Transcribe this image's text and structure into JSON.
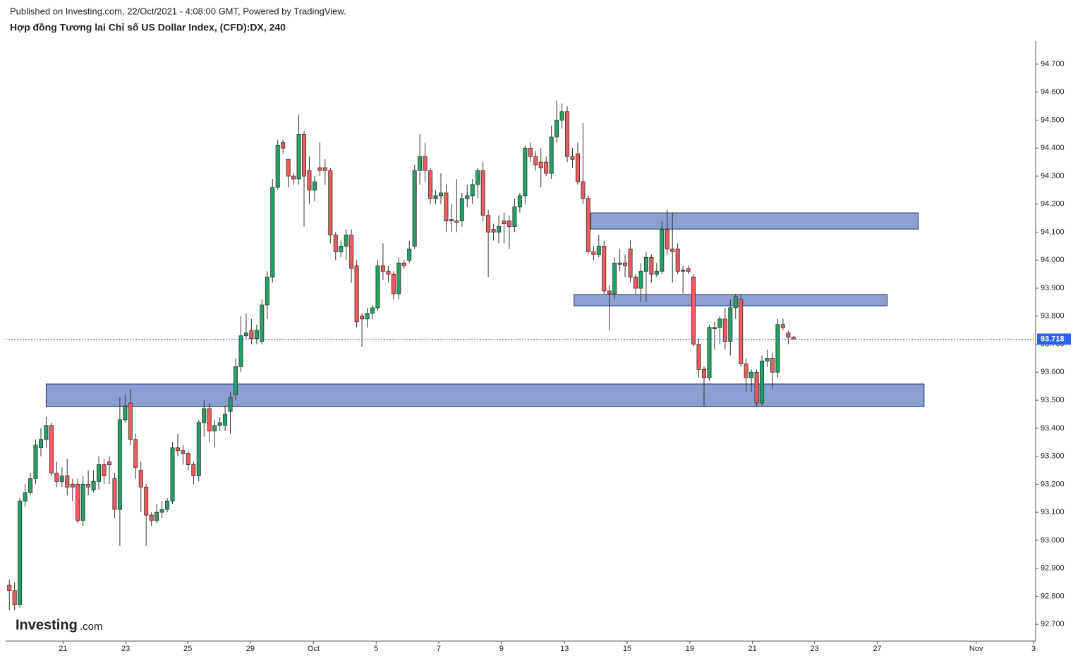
{
  "header": "Published on Investing.com, 22/Oct/2021 - 4:08:00 GMT, Powered by TradingView.",
  "logo": {
    "name": "Investing",
    "suffix": ".com"
  },
  "chart_data": {
    "type": "candlestick",
    "title": "Hợp đồng Tương lai Chỉ số US Dollar Index, (CFD):DX, 240",
    "up_color": "#1fa363",
    "down_color": "#ef5a5a",
    "x": [
      0,
      1,
      2,
      3,
      4,
      5,
      6,
      7,
      8,
      9,
      10,
      11,
      12,
      13,
      14,
      15,
      16,
      17,
      18,
      19,
      20,
      21,
      22,
      23,
      24,
      25,
      26,
      27,
      28,
      29,
      30,
      31,
      32,
      33,
      34,
      35,
      36,
      37,
      38,
      39,
      40,
      41,
      42,
      43,
      44,
      45,
      46,
      47,
      48,
      49,
      50,
      51,
      52,
      53,
      54,
      55,
      56,
      57,
      58,
      59,
      60,
      61,
      62,
      63,
      64,
      65,
      66,
      67,
      68,
      69,
      70,
      71,
      72,
      73,
      74,
      75,
      76,
      77,
      78,
      79,
      80,
      81,
      82,
      83,
      84,
      85,
      86,
      87,
      88,
      89,
      90,
      91,
      92,
      93,
      94,
      95,
      96,
      97,
      98,
      99,
      100,
      101,
      102,
      103,
      104,
      105,
      106,
      107,
      108,
      109,
      110,
      111,
      112,
      113,
      114,
      115,
      116,
      117,
      118,
      119,
      120,
      121,
      122,
      123,
      124,
      125,
      126,
      127,
      128,
      129,
      130,
      131,
      132,
      133,
      134,
      135,
      136,
      137,
      138,
      139,
      140,
      141,
      142,
      143,
      144,
      145,
      146,
      147,
      148,
      149
    ],
    "open": [
      92.84,
      92.82,
      92.77,
      93.14,
      93.17,
      93.22,
      93.33,
      93.36,
      93.41,
      93.24,
      93.21,
      93.23,
      93.2,
      93.2,
      93.07,
      93.2,
      93.18,
      93.21,
      93.27,
      93.28,
      93.22,
      93.11,
      93.43,
      93.49,
      93.36,
      93.25,
      93.19,
      93.09,
      93.07,
      93.1,
      93.11,
      93.14,
      93.33,
      93.32,
      93.31,
      93.27,
      93.23,
      93.42,
      93.47,
      93.39,
      93.41,
      93.41,
      93.46,
      93.52,
      93.62,
      93.73,
      93.75,
      93.72,
      93.71,
      93.84,
      93.94,
      94.26,
      94.42,
      94.36,
      94.3,
      94.29,
      94.45,
      94.32,
      94.25,
      94.33,
      94.33,
      94.32,
      94.09,
      94.03,
      94.05,
      94.09,
      93.98,
      93.8,
      93.79,
      93.81,
      93.83,
      93.98,
      93.96,
      93.95,
      93.88,
      93.99,
      94.0,
      94.05,
      94.32,
      94.37,
      94.32,
      94.22,
      94.23,
      94.24,
      94.145,
      94.14,
      94.14,
      94.22,
      94.23,
      94.27,
      94.32,
      94.16,
      94.11,
      94.1,
      94.14,
      94.14,
      94.12,
      94.19,
      94.23,
      94.4,
      94.37,
      94.35,
      94.35,
      94.31,
      94.44,
      94.5,
      94.53,
      94.37,
      94.38,
      94.28,
      94.22,
      94.03,
      94.02,
      94.05,
      93.89,
      93.88,
      93.985,
      93.99,
      94.04,
      93.94,
      93.9,
      93.96,
      94.01,
      93.95,
      93.96,
      94.11,
      94.04,
      94.04,
      93.96,
      93.97,
      93.94,
      93.7,
      93.61,
      93.58,
      93.76,
      93.76,
      93.79,
      93.71,
      93.83,
      93.86,
      93.63,
      93.58,
      93.6,
      93.49,
      93.64,
      93.65,
      93.6,
      93.77,
      93.74,
      93.725
    ],
    "high": [
      92.86,
      92.85,
      93.15,
      93.2,
      93.24,
      93.36,
      93.4,
      93.44,
      93.42,
      93.28,
      93.26,
      93.29,
      93.22,
      93.22,
      93.23,
      93.25,
      93.25,
      93.3,
      93.29,
      93.3,
      93.24,
      93.51,
      93.52,
      93.54,
      93.38,
      93.28,
      93.2,
      93.1,
      93.13,
      93.14,
      93.15,
      93.35,
      93.38,
      93.34,
      93.32,
      93.28,
      93.43,
      93.5,
      93.49,
      93.43,
      93.44,
      93.48,
      93.53,
      93.65,
      93.8,
      93.81,
      93.79,
      93.77,
      93.86,
      93.96,
      94.29,
      94.43,
      94.43,
      94.36,
      94.31,
      94.52,
      94.46,
      94.37,
      94.3,
      94.42,
      94.36,
      94.33,
      94.1,
      94.07,
      94.11,
      94.11,
      94.0,
      93.81,
      93.83,
      93.84,
      94.0,
      94.06,
      93.98,
      93.96,
      94.01,
      94.0,
      94.07,
      94.34,
      94.45,
      94.42,
      94.33,
      94.25,
      94.31,
      94.27,
      94.2,
      94.29,
      94.24,
      94.27,
      94.29,
      94.33,
      94.35,
      94.18,
      94.13,
      94.16,
      94.17,
      94.16,
      94.22,
      94.24,
      94.41,
      94.42,
      94.39,
      94.4,
      94.37,
      94.48,
      94.57,
      94.56,
      94.55,
      94.4,
      94.42,
      94.49,
      94.23,
      94.05,
      94.09,
      94.07,
      93.91,
      94.01,
      94.04,
      94.02,
      94.07,
      93.95,
      93.99,
      94.03,
      94.02,
      93.99,
      94.14,
      94.18,
      94.17,
      94.06,
      93.98,
      93.98,
      93.95,
      93.72,
      93.62,
      93.77,
      93.78,
      93.8,
      93.83,
      93.86,
      93.88,
      93.88,
      93.65,
      93.61,
      93.61,
      93.66,
      93.68,
      93.67,
      93.79,
      93.79,
      93.75,
      93.73
    ],
    "low": [
      92.75,
      92.75,
      92.76,
      93.12,
      93.16,
      93.2,
      93.3,
      93.33,
      93.23,
      93.19,
      93.19,
      93.16,
      93.14,
      93.06,
      93.05,
      93.16,
      93.17,
      93.18,
      93.2,
      93.2,
      93.08,
      92.98,
      93.42,
      93.34,
      93.22,
      93.1,
      92.98,
      93.05,
      93.06,
      93.08,
      93.1,
      93.13,
      93.3,
      93.27,
      93.25,
      93.2,
      93.21,
      93.37,
      93.35,
      93.33,
      93.39,
      93.39,
      93.38,
      93.5,
      93.6,
      93.72,
      93.7,
      93.7,
      93.7,
      93.79,
      93.92,
      94.25,
      94.38,
      94.26,
      94.27,
      94.27,
      94.12,
      94.2,
      94.21,
      94.3,
      94.27,
      94.06,
      94.0,
      94.01,
      94.0,
      93.92,
      93.76,
      93.69,
      93.76,
      93.79,
      93.82,
      93.93,
      93.92,
      93.86,
      93.86,
      93.97,
      93.99,
      94.04,
      94.27,
      94.28,
      94.2,
      94.2,
      94.2,
      94.1,
      94.1,
      94.1,
      94.12,
      94.19,
      94.2,
      94.22,
      94.14,
      93.94,
      94.07,
      94.06,
      94.06,
      94.04,
      94.1,
      94.17,
      94.2,
      94.35,
      94.32,
      94.26,
      94.3,
      94.29,
      94.42,
      94.47,
      94.35,
      94.33,
      94.27,
      94.2,
      94.02,
      94.0,
      94.01,
      93.88,
      93.75,
      93.86,
      93.96,
      93.94,
      93.92,
      93.88,
      93.85,
      93.85,
      93.92,
      93.94,
      93.95,
      94.02,
      93.92,
      93.95,
      93.88,
      93.95,
      93.69,
      93.58,
      93.48,
      93.57,
      93.68,
      93.7,
      93.68,
      93.66,
      93.79,
      93.62,
      93.53,
      93.53,
      93.48,
      93.48,
      93.62,
      93.54,
      93.58,
      93.75,
      93.7,
      93.715
    ],
    "close": [
      92.82,
      92.77,
      93.14,
      93.17,
      93.22,
      93.34,
      93.36,
      93.41,
      93.24,
      93.21,
      93.23,
      93.19,
      93.19,
      93.07,
      93.2,
      93.19,
      93.21,
      93.27,
      93.23,
      93.27,
      93.11,
      93.43,
      93.48,
      93.36,
      93.26,
      93.19,
      93.09,
      93.07,
      93.1,
      93.11,
      93.14,
      93.33,
      93.32,
      93.31,
      93.27,
      93.23,
      93.42,
      93.47,
      93.39,
      93.41,
      93.42,
      93.45,
      93.51,
      93.62,
      93.73,
      93.74,
      93.72,
      93.75,
      93.84,
      93.94,
      94.26,
      94.41,
      94.4,
      94.3,
      94.29,
      94.45,
      94.3,
      94.25,
      94.28,
      94.32,
      94.32,
      94.09,
      94.03,
      94.05,
      94.09,
      93.97,
      93.78,
      93.79,
      93.81,
      93.83,
      93.98,
      93.96,
      93.95,
      93.88,
      93.99,
      93.98,
      94.04,
      94.32,
      94.37,
      94.32,
      94.22,
      94.23,
      94.24,
      94.14,
      94.14,
      94.135,
      94.22,
      94.23,
      94.27,
      94.32,
      94.16,
      94.1,
      94.1,
      94.12,
      94.13,
      94.12,
      94.19,
      94.23,
      94.4,
      94.37,
      94.34,
      94.33,
      94.31,
      94.44,
      94.5,
      94.53,
      94.37,
      94.36,
      94.28,
      94.22,
      94.03,
      94.02,
      94.05,
      93.89,
      93.88,
      93.99,
      93.99,
      93.98,
      93.94,
      93.9,
      93.96,
      94.01,
      93.95,
      93.96,
      94.11,
      94.04,
      94.03,
      93.96,
      93.965,
      93.96,
      93.7,
      93.61,
      93.58,
      93.76,
      93.755,
      93.79,
      93.71,
      93.83,
      93.87,
      93.63,
      93.58,
      93.6,
      93.49,
      93.64,
      93.65,
      93.6,
      93.77,
      93.76,
      93.725,
      93.718
    ],
    "last_price": 93.718,
    "last_color": "#2962ff",
    "zones": [
      {
        "x": [
          7.0,
          173.8
        ],
        "y": [
          93.477,
          93.558
        ]
      },
      {
        "x": [
          107.3,
          166.8
        ],
        "y": [
          93.837,
          93.877
        ]
      },
      {
        "x": [
          110.5,
          172.7
        ],
        "y": [
          94.111,
          94.169
        ]
      }
    ],
    "zone_color": "#8c9fd1",
    "xlim": [
      -0.7,
      195
    ],
    "xticks": [
      {
        "value": 10.2,
        "label": "21"
      },
      {
        "value": 22.1,
        "label": "23"
      },
      {
        "value": 33.9,
        "label": "25"
      },
      {
        "value": 45.8,
        "label": "29"
      },
      {
        "value": 57.8,
        "label": "Oct"
      },
      {
        "value": 69.7,
        "label": "5"
      },
      {
        "value": 81.6,
        "label": "7"
      },
      {
        "value": 93.5,
        "label": "9"
      },
      {
        "value": 105.5,
        "label": "13"
      },
      {
        "value": 117.4,
        "label": "15"
      },
      {
        "value": 129.3,
        "label": "19"
      },
      {
        "value": 141.2,
        "label": "21"
      },
      {
        "value": 153.0,
        "label": "23"
      },
      {
        "value": 164.9,
        "label": "27"
      },
      {
        "value": 183.7,
        "label": "Nov"
      },
      {
        "value": 194.6,
        "label": "3"
      }
    ],
    "ylim": [
      92.64,
      94.783
    ],
    "yticks": [
      {
        "value": 92.7,
        "label": "92.700"
      },
      {
        "value": 92.8,
        "label": "92.800"
      },
      {
        "value": 92.9,
        "label": "92.900"
      },
      {
        "value": 93.0,
        "label": "93.000"
      },
      {
        "value": 93.1,
        "label": "93.100"
      },
      {
        "value": 93.2,
        "label": "93.200"
      },
      {
        "value": 93.3,
        "label": "93.300"
      },
      {
        "value": 93.4,
        "label": "93.400"
      },
      {
        "value": 93.5,
        "label": "93.500"
      },
      {
        "value": 93.6,
        "label": "93.600"
      },
      {
        "value": 93.7,
        "label": "93.700"
      },
      {
        "value": 93.8,
        "label": "93.800"
      },
      {
        "value": 93.9,
        "label": "93.900"
      },
      {
        "value": 94.0,
        "label": "94.000"
      },
      {
        "value": 94.1,
        "label": "94.100"
      },
      {
        "value": 94.2,
        "label": "94.200"
      },
      {
        "value": 94.3,
        "label": "94.300"
      },
      {
        "value": 94.4,
        "label": "94.400"
      },
      {
        "value": 94.5,
        "label": "94.500"
      },
      {
        "value": 94.6,
        "label": "94.600"
      },
      {
        "value": 94.7,
        "label": "94.700"
      }
    ]
  }
}
